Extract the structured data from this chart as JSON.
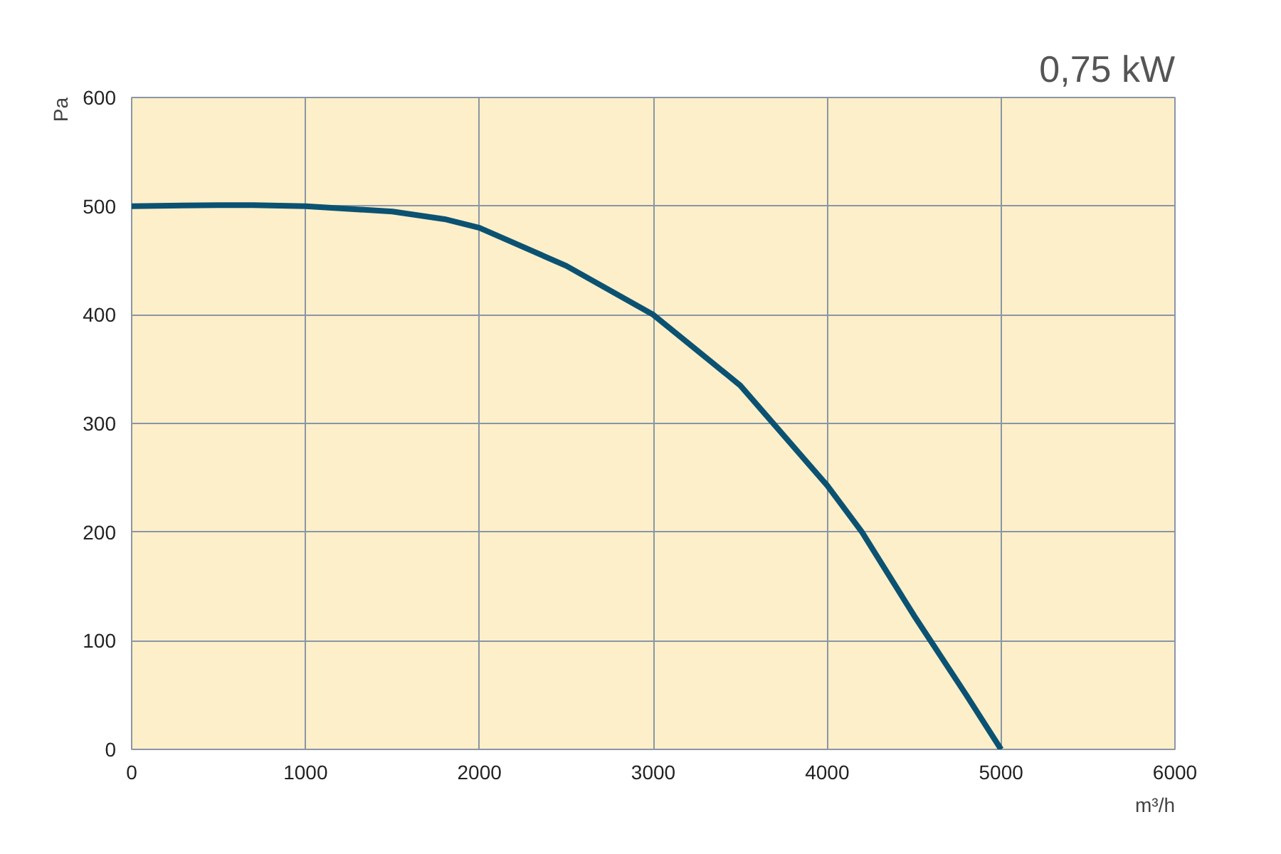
{
  "chart_data": {
    "type": "line",
    "title": "0,75 kW",
    "xlabel": "m³/h",
    "ylabel": "Pa",
    "x": [
      0,
      500,
      700,
      1000,
      1500,
      1800,
      2000,
      2500,
      3000,
      3500,
      4000,
      4200,
      4500,
      4800,
      5000
    ],
    "series": [
      {
        "color": "#0b5272",
        "values": [
          500,
          501,
          501,
          500,
          495,
          488,
          480,
          445,
          400,
          335,
          243,
          200,
          123,
          50,
          0
        ]
      }
    ],
    "xlim": [
      0,
      6000
    ],
    "xticks": [
      0,
      1000,
      2000,
      3000,
      4000,
      5000,
      6000
    ],
    "ylim": [
      0,
      600
    ],
    "yticks": [
      0,
      100,
      200,
      300,
      400,
      500,
      600
    ],
    "grid": true,
    "line_style": "solid",
    "marker": "none"
  }
}
